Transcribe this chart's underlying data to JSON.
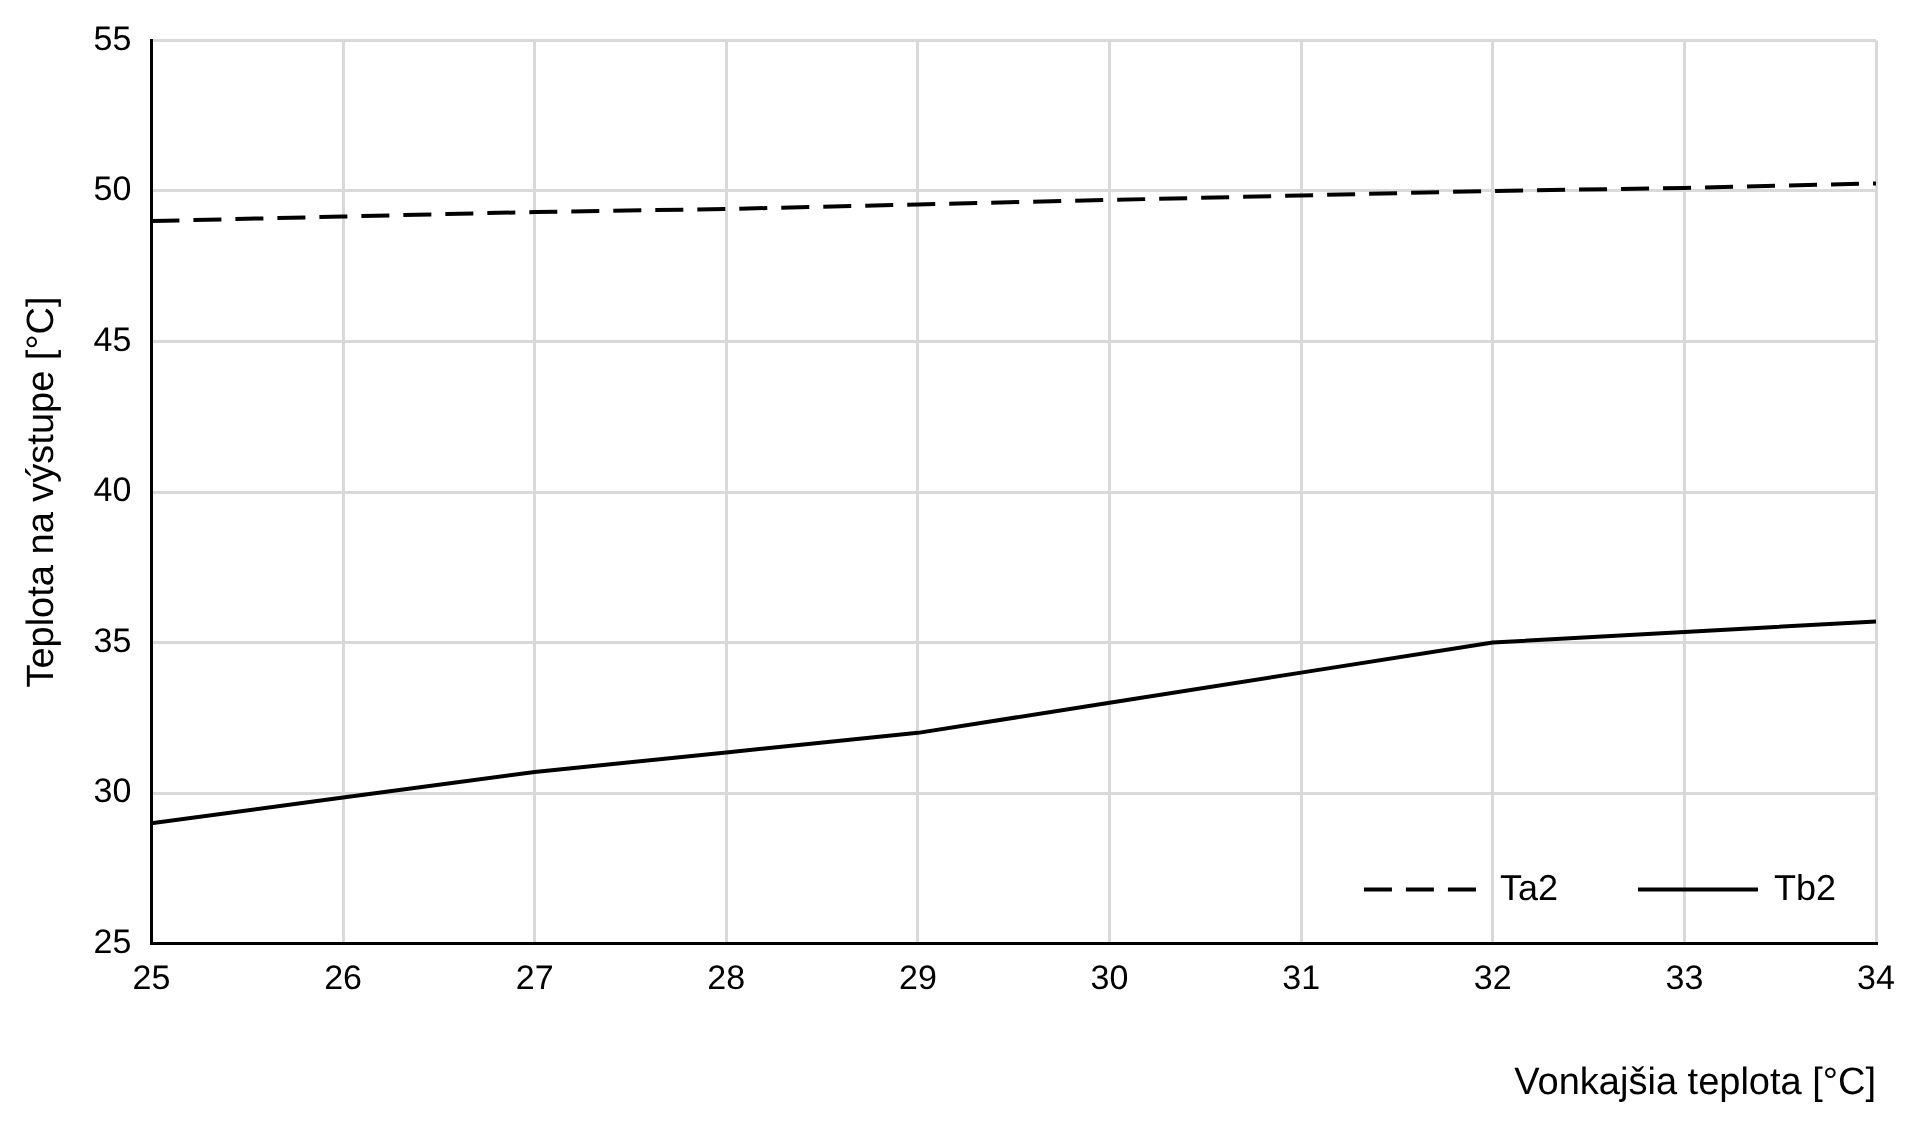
{
  "chart_data": {
    "type": "line",
    "xlabel": "Vonkajšia teplota [°C]",
    "ylabel": "Teplota na výstupe [°C]",
    "x": [
      25,
      26,
      27,
      28,
      29,
      30,
      31,
      32,
      33,
      34
    ],
    "series": [
      {
        "name": "Ta2",
        "color": "#000000",
        "line_style": "dashed",
        "values": [
          49.0,
          49.15,
          49.3,
          49.4,
          49.55,
          49.7,
          49.85,
          50.0,
          50.1,
          50.25
        ]
      },
      {
        "name": "Tb2",
        "color": "#000000",
        "line_style": "solid",
        "values": [
          29.0,
          29.85,
          30.7,
          31.35,
          32.0,
          33.0,
          34.0,
          35.0,
          35.35,
          35.7
        ]
      }
    ],
    "xlim": [
      25,
      34
    ],
    "xticks": [
      25,
      26,
      27,
      28,
      29,
      30,
      31,
      32,
      33,
      34
    ],
    "ylim": [
      25,
      55
    ],
    "yticks": [
      25,
      30,
      35,
      40,
      45,
      50,
      55
    ],
    "grid": true,
    "legend": "bottom right",
    "marker": "none"
  }
}
